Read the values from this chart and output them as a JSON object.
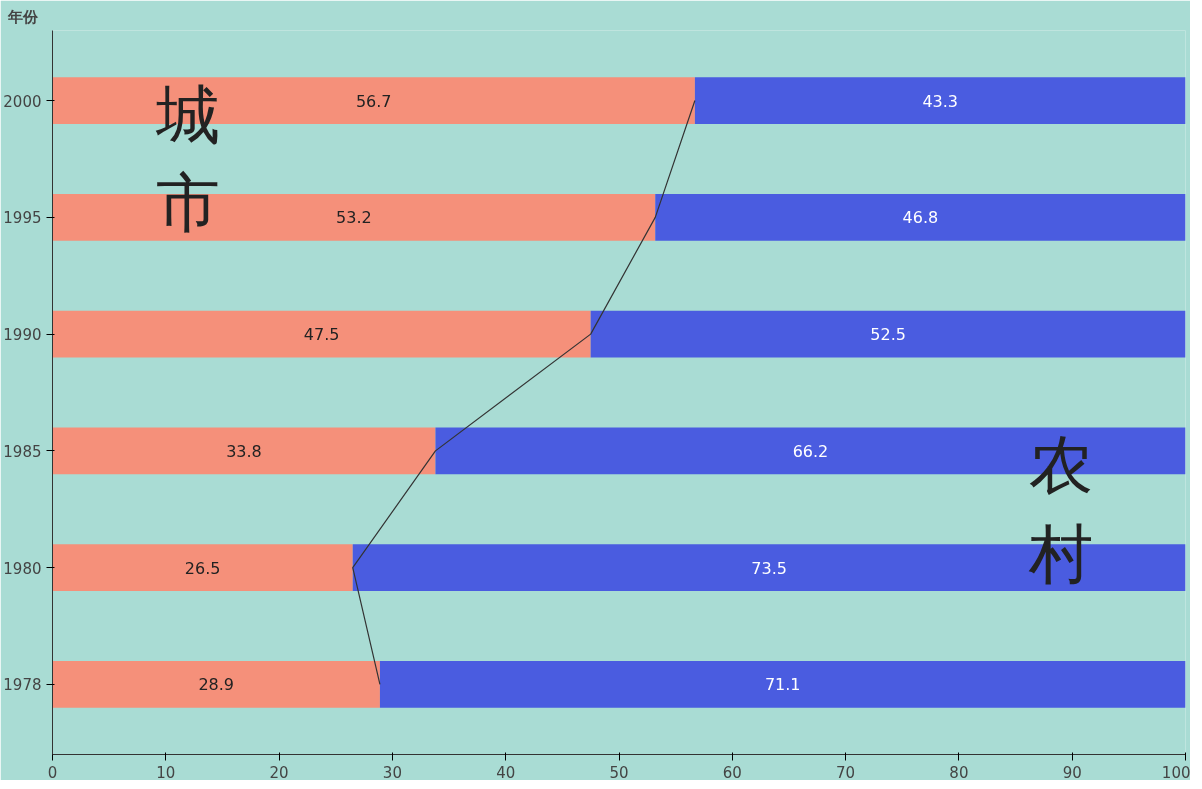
{
  "chart_data": {
    "type": "bar",
    "orientation": "horizontal",
    "stacked": true,
    "ylabel": "年份",
    "categories": [
      "2000",
      "1995",
      "1990",
      "1985",
      "1980",
      "1978"
    ],
    "series": [
      {
        "name": "城市",
        "color": "#f5907a",
        "values": [
          56.7,
          53.2,
          47.5,
          33.8,
          26.5,
          28.9
        ]
      },
      {
        "name": "农村",
        "color": "#4a5ce0",
        "values": [
          43.3,
          46.8,
          52.5,
          66.2,
          73.5,
          71.1
        ]
      },
      {
        "type": "line",
        "color": "#333333",
        "values": [
          56.7,
          53.2,
          47.5,
          33.8,
          26.5,
          28.9
        ],
        "value_labels": [
          null,
          null,
          null,
          null,
          null,
          null
        ]
      }
    ],
    "xlim": [
      0,
      100
    ],
    "xticks": [
      0,
      10,
      20,
      30,
      40,
      50,
      60,
      70,
      80,
      90,
      100
    ],
    "data_labels": true,
    "grid": false
  }
}
